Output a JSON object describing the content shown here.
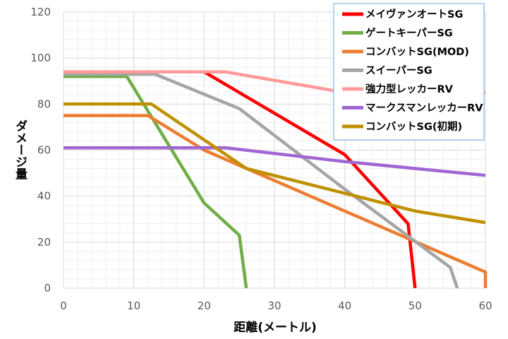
{
  "chart_data": {
    "type": "line",
    "xlabel": "距離(メートル)",
    "ylabel": "ダメージ量",
    "xlim": [
      0,
      60
    ],
    "ylim": [
      0,
      120
    ],
    "xticks": [
      "0",
      "10",
      "20",
      "30",
      "40",
      "50",
      "60"
    ],
    "yticks": [
      "0",
      "20",
      "40",
      "60",
      "80",
      "100",
      "120"
    ],
    "grid": true,
    "legend_position": "top-right",
    "series": [
      {
        "name": "メイヴァンオートSG",
        "color": "#ff0000",
        "points": [
          [
            0,
            94
          ],
          [
            20,
            94
          ],
          [
            40,
            58
          ],
          [
            49,
            28
          ],
          [
            50,
            0
          ]
        ]
      },
      {
        "name": "ゲートキーパーSG",
        "color": "#70ad47",
        "points": [
          [
            0,
            92
          ],
          [
            9,
            92
          ],
          [
            20,
            37
          ],
          [
            25,
            23
          ],
          [
            26,
            0
          ]
        ]
      },
      {
        "name": "コンバットSG(MOD)",
        "color": "#ed7d31",
        "points": [
          [
            0,
            75
          ],
          [
            12,
            75
          ],
          [
            20,
            60
          ],
          [
            60,
            7
          ],
          [
            60,
            0
          ]
        ]
      },
      {
        "name": "スイーパーSG",
        "color": "#a5a5a5",
        "points": [
          [
            0,
            93
          ],
          [
            13,
            93
          ],
          [
            25,
            78
          ],
          [
            40,
            43
          ],
          [
            55,
            9
          ],
          [
            56,
            0
          ]
        ]
      },
      {
        "name": "強力型レッカーRV",
        "color": "#ff9999",
        "points": [
          [
            0,
            94
          ],
          [
            23,
            94
          ],
          [
            40,
            85
          ],
          [
            60,
            85
          ]
        ]
      },
      {
        "name": "マークスマンレッカーRV",
        "color": "#a066d3",
        "points": [
          [
            0,
            61
          ],
          [
            23,
            61
          ],
          [
            40,
            55
          ],
          [
            60,
            49
          ]
        ]
      },
      {
        "name": "コンバットSG(初期)",
        "color": "#bf9000",
        "points": [
          [
            0,
            80
          ],
          [
            12.5,
            80
          ],
          [
            26,
            52
          ],
          [
            50,
            33.5
          ],
          [
            60,
            28.5
          ]
        ]
      }
    ]
  }
}
